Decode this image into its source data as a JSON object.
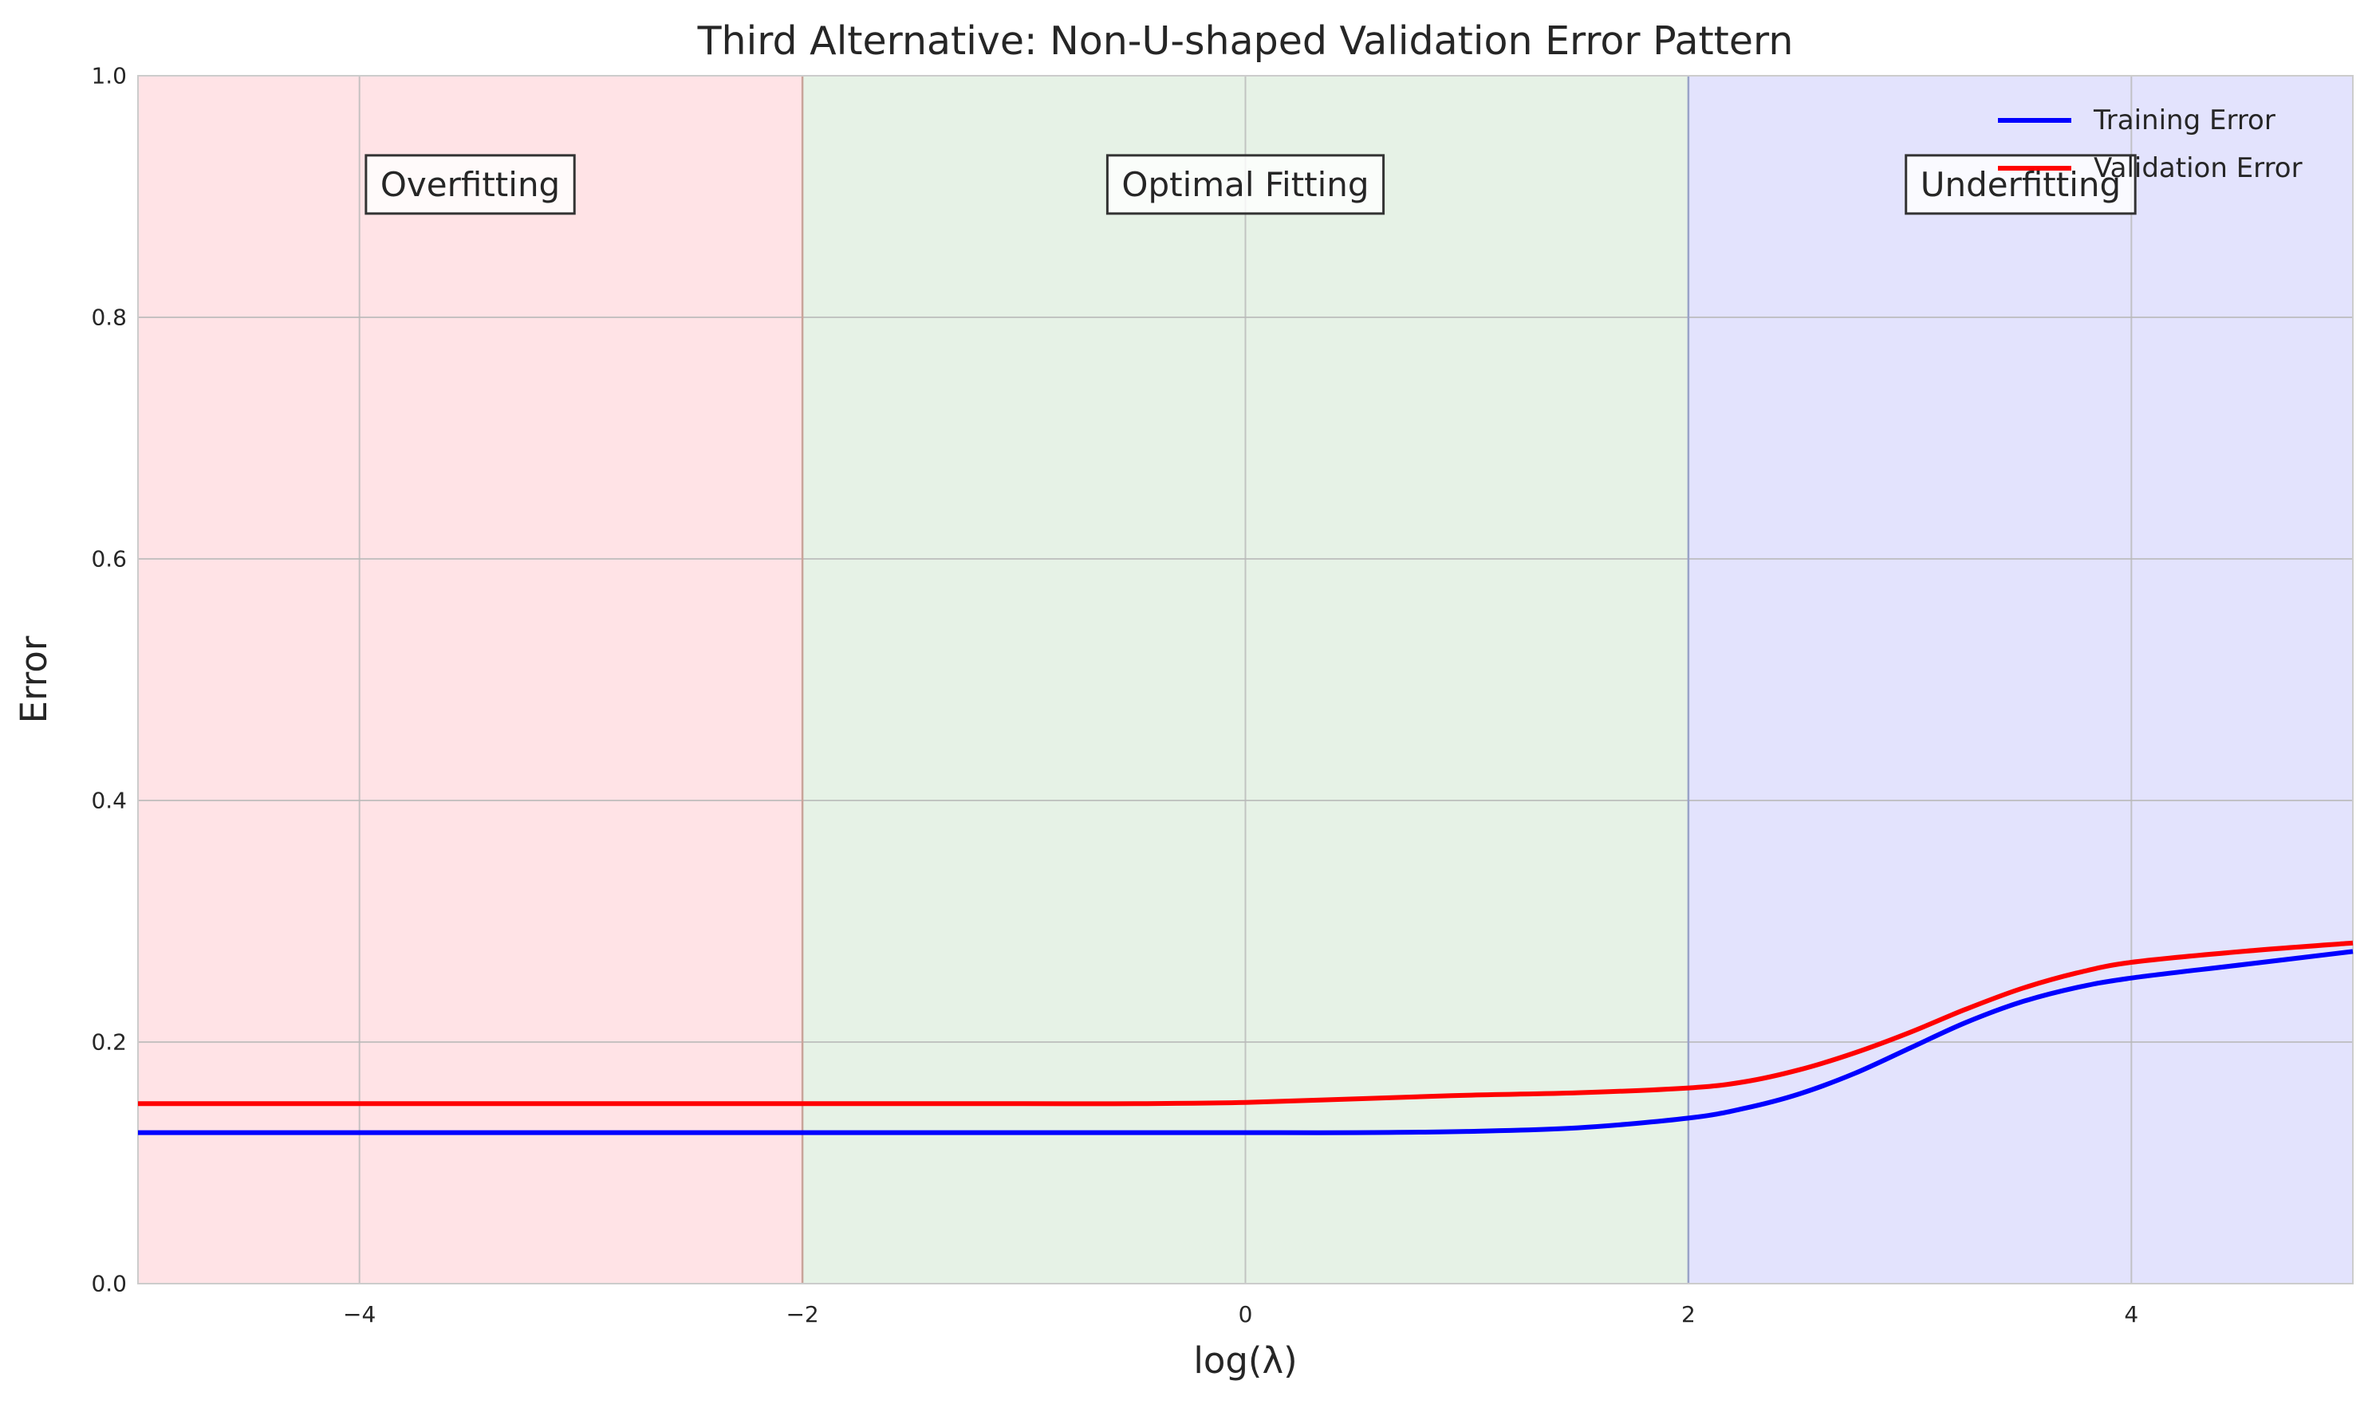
{
  "chart_data": {
    "type": "line",
    "title": "Third Alternative: Non-U-shaped Validation Error Pattern",
    "xlabel": "log(λ)",
    "ylabel": "Error",
    "xlim": [
      -5,
      5
    ],
    "ylim": [
      0,
      1
    ],
    "xticks": [
      -4,
      -2,
      0,
      2,
      4
    ],
    "xtick_labels": [
      "−4",
      "−2",
      "0",
      "2",
      "4"
    ],
    "yticks": [
      0.0,
      0.2,
      0.4,
      0.6,
      0.8,
      1.0
    ],
    "ytick_labels": [
      "0.0",
      "0.2",
      "0.4",
      "0.6",
      "0.8",
      "1.0"
    ],
    "grid": true,
    "legend_position": "top-right",
    "x": [
      -5,
      -4.5,
      -4,
      -3.5,
      -3,
      -2.5,
      -2,
      -1.5,
      -1,
      -0.5,
      0,
      0.5,
      1,
      1.5,
      2,
      2.25,
      2.5,
      2.75,
      3,
      3.25,
      3.5,
      3.75,
      4,
      4.5,
      5
    ],
    "series": [
      {
        "name": "Training Error",
        "color": "#0000ff",
        "values": [
          0.125,
          0.125,
          0.125,
          0.125,
          0.125,
          0.125,
          0.125,
          0.125,
          0.125,
          0.125,
          0.125,
          0.125,
          0.126,
          0.129,
          0.137,
          0.145,
          0.157,
          0.174,
          0.195,
          0.216,
          0.233,
          0.245,
          0.253,
          0.264,
          0.275
        ]
      },
      {
        "name": "Validation Error",
        "color": "#ff0000",
        "values": [
          0.149,
          0.149,
          0.149,
          0.149,
          0.149,
          0.149,
          0.149,
          0.149,
          0.149,
          0.149,
          0.15,
          0.153,
          0.156,
          0.158,
          0.162,
          0.167,
          0.177,
          0.191,
          0.208,
          0.227,
          0.244,
          0.257,
          0.266,
          0.275,
          0.282
        ]
      }
    ],
    "regions": [
      {
        "label": "Overfitting",
        "x_range": [
          -5,
          -2
        ],
        "color": "#ffe3e6"
      },
      {
        "label": "Optimal Fitting",
        "x_range": [
          -2,
          2
        ],
        "color": "#e6f2e6"
      },
      {
        "label": "Underfitting",
        "x_range": [
          2,
          5
        ],
        "color": "#e3e3fd"
      }
    ],
    "region_label_y": 0.91,
    "boundaries": [
      {
        "x": -2,
        "color": "#c9a49a"
      },
      {
        "x": 2,
        "color": "#9aa3c8"
      }
    ]
  }
}
